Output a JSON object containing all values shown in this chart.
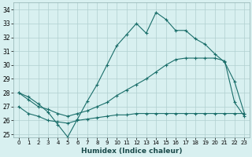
{
  "xlabel": "Humidex (Indice chaleur)",
  "bg_color": "#d8f0f0",
  "grid_color": "#b0d0d0",
  "line_color": "#1a6e6a",
  "xlim": [
    -0.5,
    23.5
  ],
  "ylim": [
    24.8,
    34.5
  ],
  "xticks": [
    0,
    1,
    2,
    3,
    4,
    5,
    6,
    7,
    8,
    9,
    10,
    11,
    12,
    13,
    14,
    15,
    16,
    17,
    18,
    19,
    20,
    21,
    22,
    23
  ],
  "yticks": [
    25,
    26,
    27,
    28,
    29,
    30,
    31,
    32,
    33,
    34
  ],
  "series1_x": [
    0,
    1,
    2,
    3,
    4,
    5,
    6,
    7,
    8,
    9,
    10,
    11,
    12,
    13,
    14,
    15,
    16,
    17,
    18,
    19,
    20,
    21,
    22,
    23
  ],
  "series1_y": [
    28.0,
    27.7,
    27.2,
    26.6,
    25.7,
    24.8,
    26.1,
    27.4,
    28.6,
    30.0,
    31.4,
    32.2,
    33.0,
    32.3,
    33.8,
    33.3,
    32.5,
    32.5,
    31.9,
    31.5,
    30.8,
    30.2,
    28.8,
    26.5
  ],
  "series2_x": [
    0,
    1,
    2,
    3,
    4,
    5,
    6,
    7,
    8,
    9,
    10,
    11,
    12,
    13,
    14,
    15,
    16,
    17,
    18,
    19,
    20,
    21,
    22,
    23
  ],
  "series2_y": [
    27.0,
    26.5,
    26.3,
    26.0,
    25.9,
    25.8,
    26.0,
    26.1,
    26.2,
    26.3,
    26.4,
    26.4,
    26.5,
    26.5,
    26.5,
    26.5,
    26.5,
    26.5,
    26.5,
    26.5,
    26.5,
    26.5,
    26.5,
    26.5
  ],
  "series3_x": [
    0,
    1,
    2,
    3,
    4,
    5,
    6,
    7,
    8,
    9,
    10,
    11,
    12,
    13,
    14,
    15,
    16,
    17,
    18,
    19,
    20,
    21,
    22,
    23
  ],
  "series3_y": [
    28.0,
    27.5,
    27.0,
    26.8,
    26.5,
    26.3,
    26.5,
    26.7,
    27.0,
    27.3,
    27.8,
    28.2,
    28.6,
    29.0,
    29.5,
    30.0,
    30.4,
    30.5,
    30.5,
    30.5,
    30.5,
    30.3,
    27.3,
    26.3
  ]
}
